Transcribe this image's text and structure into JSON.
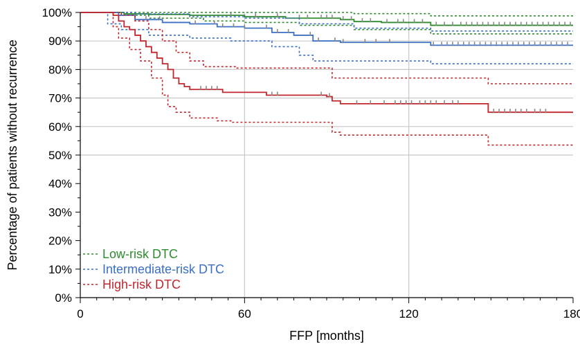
{
  "chart_data": {
    "type": "line",
    "xlabel": "FFP [months]",
    "ylabel": "Percentage of patients without recurrence",
    "xlim": [
      0,
      180
    ],
    "ylim": [
      0,
      100
    ],
    "x_ticks": [
      0,
      60,
      120,
      180
    ],
    "y_ticks": [
      0,
      10,
      20,
      30,
      40,
      50,
      60,
      70,
      80,
      90,
      100
    ],
    "y_tick_labels": [
      "0%",
      "10%",
      "20%",
      "30%",
      "40%",
      "50%",
      "60%",
      "70%",
      "80%",
      "90%",
      "100%"
    ],
    "x_tick_labels": [
      "0",
      "60",
      "120",
      "180"
    ],
    "grid": true,
    "legend_position": "bottom-left",
    "series": [
      {
        "name": "Low-risk DTC",
        "color": "#2e8b2e",
        "survival": [
          [
            0,
            100
          ],
          [
            12,
            100
          ],
          [
            16,
            99.5
          ],
          [
            25,
            99.3
          ],
          [
            40,
            99
          ],
          [
            60,
            98.5
          ],
          [
            75,
            98
          ],
          [
            95,
            97.5
          ],
          [
            100,
            96.8
          ],
          [
            110,
            96.5
          ],
          [
            128,
            95.5
          ],
          [
            180,
            95.5
          ]
        ],
        "upper_ci": [
          [
            0,
            100
          ],
          [
            40,
            100
          ],
          [
            80,
            100
          ],
          [
            100,
            99.6
          ],
          [
            128,
            98.8
          ],
          [
            180,
            98.8
          ]
        ],
        "lower_ci": [
          [
            0,
            100
          ],
          [
            14,
            99
          ],
          [
            25,
            98
          ],
          [
            45,
            97
          ],
          [
            60,
            96.5
          ],
          [
            80,
            95.5
          ],
          [
            100,
            94
          ],
          [
            128,
            92.5
          ],
          [
            180,
            92.5
          ]
        ],
        "censored_x": [
          55,
          64,
          72,
          80,
          83,
          88,
          90,
          92,
          96,
          99,
          103,
          106,
          112,
          116,
          118,
          122,
          125,
          130,
          133,
          136,
          139,
          141,
          143,
          145,
          147,
          149,
          151,
          153,
          155,
          157,
          159,
          161,
          163,
          165,
          167,
          169,
          171,
          173,
          175,
          177,
          179
        ]
      },
      {
        "name": "Intermediate-risk DTC",
        "color": "#3a6fc4",
        "survival": [
          [
            0,
            100
          ],
          [
            10,
            100
          ],
          [
            14,
            99
          ],
          [
            20,
            97.5
          ],
          [
            30,
            96.5
          ],
          [
            40,
            96
          ],
          [
            50,
            95
          ],
          [
            60,
            94.5
          ],
          [
            70,
            93
          ],
          [
            78,
            92
          ],
          [
            85,
            90
          ],
          [
            95,
            89.5
          ],
          [
            126,
            89.5
          ],
          [
            128,
            88.5
          ],
          [
            180,
            88.5
          ]
        ],
        "upper_ci": [
          [
            0,
            100
          ],
          [
            20,
            99.5
          ],
          [
            40,
            98.5
          ],
          [
            60,
            98
          ],
          [
            80,
            96
          ],
          [
            100,
            94.5
          ],
          [
            128,
            93.5
          ],
          [
            180,
            93.5
          ]
        ],
        "lower_ci": [
          [
            0,
            100
          ],
          [
            10,
            96
          ],
          [
            15,
            94
          ],
          [
            25,
            92
          ],
          [
            40,
            91
          ],
          [
            55,
            90
          ],
          [
            70,
            88
          ],
          [
            80,
            85
          ],
          [
            85,
            83
          ],
          [
            128,
            82
          ],
          [
            180,
            82
          ]
        ],
        "censored_x": [
          24,
          29,
          42,
          49,
          52,
          56,
          60,
          68,
          72,
          76,
          84,
          87,
          93,
          96,
          104,
          108,
          113,
          129,
          132,
          134,
          136,
          138,
          140,
          142,
          144,
          146,
          148,
          150,
          152,
          154,
          156,
          158,
          160,
          162,
          164,
          166,
          168,
          170,
          172,
          174,
          176,
          178
        ]
      },
      {
        "name": "High-risk DTC",
        "color": "#c0272d",
        "survival": [
          [
            0,
            100
          ],
          [
            12,
            99
          ],
          [
            14,
            97
          ],
          [
            16,
            95
          ],
          [
            18,
            94
          ],
          [
            20,
            92
          ],
          [
            22,
            90
          ],
          [
            24,
            88
          ],
          [
            26,
            86
          ],
          [
            28,
            84
          ],
          [
            30,
            82
          ],
          [
            32,
            80
          ],
          [
            34,
            77
          ],
          [
            36,
            75
          ],
          [
            38,
            74
          ],
          [
            40,
            73
          ],
          [
            48,
            73
          ],
          [
            52,
            72
          ],
          [
            66,
            72
          ],
          [
            68,
            71
          ],
          [
            90,
            70.5
          ],
          [
            92,
            69
          ],
          [
            95,
            68
          ],
          [
            120,
            68
          ],
          [
            148,
            68
          ],
          [
            149,
            65
          ],
          [
            180,
            65
          ]
        ],
        "upper_ci": [
          [
            0,
            100
          ],
          [
            12,
            100
          ],
          [
            15,
            99
          ],
          [
            20,
            97
          ],
          [
            25,
            94
          ],
          [
            30,
            90
          ],
          [
            35,
            86
          ],
          [
            40,
            83
          ],
          [
            45,
            81
          ],
          [
            55,
            81
          ],
          [
            57,
            80.5
          ],
          [
            90,
            80.5
          ],
          [
            92,
            77
          ],
          [
            120,
            77
          ],
          [
            148,
            77
          ],
          [
            149,
            75
          ],
          [
            180,
            75
          ]
        ],
        "lower_ci": [
          [
            0,
            100
          ],
          [
            12,
            95
          ],
          [
            14,
            91
          ],
          [
            18,
            87
          ],
          [
            22,
            83
          ],
          [
            26,
            77
          ],
          [
            30,
            71
          ],
          [
            32,
            67
          ],
          [
            35,
            65
          ],
          [
            40,
            63
          ],
          [
            45,
            63
          ],
          [
            50,
            62
          ],
          [
            55,
            61.5
          ],
          [
            90,
            61.5
          ],
          [
            92,
            58
          ],
          [
            95,
            57
          ],
          [
            148,
            57
          ],
          [
            149,
            53.5
          ],
          [
            180,
            53.5
          ]
        ],
        "censored_x": [
          44,
          46,
          48,
          50,
          70,
          72,
          88,
          91,
          101,
          106,
          111,
          115,
          117,
          119,
          121,
          124,
          126,
          128,
          130,
          133,
          136,
          138,
          151,
          153,
          155,
          157,
          159,
          161,
          163,
          166,
          168,
          170
        ]
      }
    ]
  }
}
